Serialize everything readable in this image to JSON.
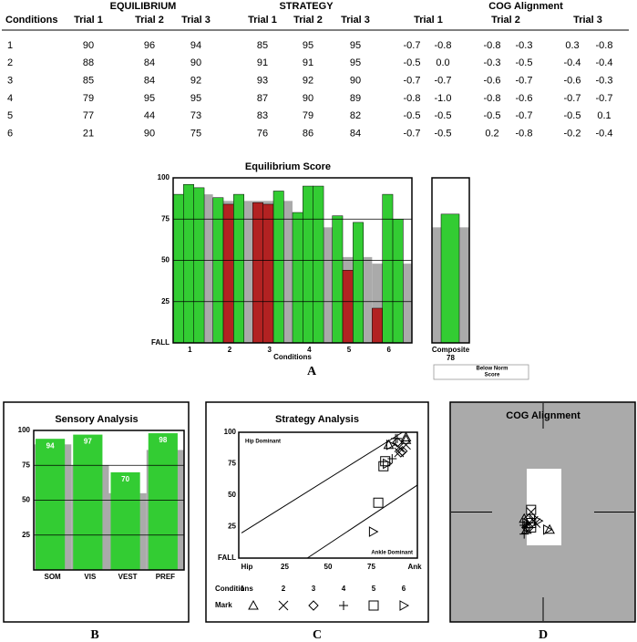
{
  "table": {
    "groups": [
      "EQUILIBRIUM",
      "STRATEGY",
      "COG Alignment"
    ],
    "columns": [
      "Conditions",
      "Trial 1",
      "Trial 2",
      "Trial 3",
      "Trial 1",
      "Trial 2",
      "Trial 3",
      "Trial 1",
      "Trial 2",
      "Trial 3"
    ],
    "rows": [
      [
        "1",
        "90",
        "96",
        "94",
        "85",
        "95",
        "95",
        "-0.7",
        "-0.8",
        "-0.8",
        "-0.3",
        "0.3",
        "-0.8"
      ],
      [
        "2",
        "88",
        "84",
        "90",
        "91",
        "91",
        "95",
        "-0.5",
        "0.0",
        "-0.3",
        "-0.5",
        "-0.4",
        "-0.4"
      ],
      [
        "3",
        "85",
        "84",
        "92",
        "93",
        "92",
        "90",
        "-0.7",
        "-0.7",
        "-0.6",
        "-0.7",
        "-0.6",
        "-0.3"
      ],
      [
        "4",
        "79",
        "95",
        "95",
        "87",
        "90",
        "89",
        "-0.8",
        "-1.0",
        "-0.8",
        "-0.6",
        "-0.7",
        "-0.7"
      ],
      [
        "5",
        "77",
        "44",
        "73",
        "83",
        "79",
        "82",
        "-0.5",
        "-0.5",
        "-0.5",
        "-0.7",
        "-0.5",
        "0.1"
      ],
      [
        "6",
        "21",
        "90",
        "75",
        "76",
        "86",
        "84",
        "-0.7",
        "-0.5",
        "0.2",
        "-0.8",
        "-0.2",
        "-0.4"
      ]
    ]
  },
  "chart_data": [
    {
      "type": "bar",
      "title": "Equilibrium Score",
      "panel_label": "A",
      "x_label": "Conditions",
      "categories": [
        "1",
        "2",
        "3",
        "4",
        "5",
        "6"
      ],
      "series": [
        {
          "values": [
            90,
            88,
            85,
            79,
            77,
            21
          ],
          "colors": [
            "#33cc33",
            "#33cc33",
            "#b22222",
            "#33cc33",
            "#33cc33",
            "#b22222"
          ]
        },
        {
          "values": [
            96,
            84,
            84,
            95,
            44,
            90
          ],
          "colors": [
            "#33cc33",
            "#b22222",
            "#b22222",
            "#33cc33",
            "#b22222",
            "#33cc33"
          ]
        },
        {
          "values": [
            94,
            90,
            92,
            95,
            73,
            75
          ],
          "colors": [
            "#33cc33",
            "#33cc33",
            "#33cc33",
            "#33cc33",
            "#33cc33",
            "#33cc33"
          ]
        }
      ],
      "norm": {
        "values": [
          90,
          86,
          86,
          70,
          52,
          48
        ],
        "color": "#aaaaaa"
      },
      "composite": {
        "label": "Composite",
        "value": 78,
        "norm": 70,
        "color": "#33cc33"
      },
      "note": [
        "Below Norm",
        "Score"
      ],
      "ylim": [
        0,
        100
      ],
      "yticks": [
        {
          "value": 0,
          "label": "FALL"
        },
        25,
        50,
        75,
        100
      ],
      "grid": true
    },
    {
      "type": "bar",
      "title": "Sensory Analysis",
      "panel_label": "B",
      "categories": [
        "SOM",
        "VIS",
        "VEST",
        "PREF"
      ],
      "values": [
        94,
        97,
        70,
        98
      ],
      "color": "#33cc33",
      "norm": {
        "values": [
          90,
          75,
          55,
          86
        ],
        "color": "#aaaaaa"
      },
      "ylim": [
        0,
        100
      ],
      "yticks": [
        25,
        50,
        75,
        100
      ],
      "grid": true
    },
    {
      "type": "scatter",
      "title": "Strategy Analysis",
      "panel_label": "C",
      "legend_title": "Conditions",
      "legend_mark_label": "Mark",
      "annotations": [
        "Hip Dominant",
        "Ankle Dominant"
      ],
      "series": [
        {
          "name": "1",
          "marker": "triangle",
          "x": [
            85,
            95,
            95
          ],
          "y": [
            90,
            96,
            94
          ]
        },
        {
          "name": "2",
          "marker": "cross",
          "x": [
            91,
            91,
            95
          ],
          "y": [
            88,
            84,
            90
          ]
        },
        {
          "name": "3",
          "marker": "diamond",
          "x": [
            93,
            92,
            90
          ],
          "y": [
            85,
            84,
            92
          ]
        },
        {
          "name": "4",
          "marker": "plus",
          "x": [
            87,
            90,
            89
          ],
          "y": [
            79,
            95,
            95
          ]
        },
        {
          "name": "5",
          "marker": "square",
          "x": [
            83,
            79,
            82
          ],
          "y": [
            77,
            44,
            73
          ]
        },
        {
          "name": "6",
          "marker": "right-triangle",
          "x": [
            76,
            86,
            84
          ],
          "y": [
            21,
            90,
            75
          ]
        }
      ],
      "xlim": [
        0,
        100
      ],
      "xticks": [
        {
          "value": 0,
          "label": "Hip"
        },
        25,
        50,
        75,
        {
          "value": 100,
          "label": "Ank"
        }
      ],
      "ylim": [
        0,
        100
      ],
      "yticks": [
        {
          "value": 0,
          "label": "FALL"
        },
        25,
        50,
        75,
        100
      ]
    },
    {
      "type": "scatter",
      "title": "COG Alignment",
      "panel_label": "D",
      "background": "#aaaaaa",
      "series": [
        {
          "marker": "triangle",
          "x": [
            -0.7,
            -0.8,
            0.3
          ],
          "y": [
            -0.8,
            -0.3,
            -0.8
          ]
        },
        {
          "marker": "cross",
          "x": [
            -0.5,
            -0.3,
            -0.4
          ],
          "y": [
            0.0,
            -0.5,
            -0.4
          ]
        },
        {
          "marker": "diamond",
          "x": [
            -0.7,
            -0.6,
            -0.6
          ],
          "y": [
            -0.7,
            -0.7,
            -0.3
          ]
        },
        {
          "marker": "plus",
          "x": [
            -0.8,
            -0.8,
            -0.7
          ],
          "y": [
            -1.0,
            -0.6,
            -0.7
          ]
        },
        {
          "marker": "square",
          "x": [
            -0.5,
            -0.5,
            -0.5
          ],
          "y": [
            -0.5,
            -0.7,
            0.1
          ]
        },
        {
          "marker": "right-triangle",
          "x": [
            -0.7,
            0.2,
            -0.2
          ],
          "y": [
            -0.5,
            -0.8,
            -0.4
          ]
        }
      ],
      "xlim": [
        -4,
        4
      ],
      "ylim": [
        -5,
        5
      ]
    }
  ]
}
